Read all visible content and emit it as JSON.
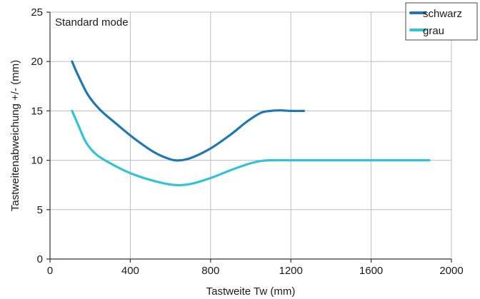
{
  "chart_data": {
    "type": "line",
    "title": "",
    "annotation": "Standard mode",
    "xlabel": "Tastweite Tw (mm)",
    "ylabel": "Tastweitenabweichung +/- (mm)",
    "xlim": [
      0,
      2000
    ],
    "ylim": [
      0,
      25
    ],
    "xticks": [
      0,
      400,
      800,
      1200,
      1600,
      2000
    ],
    "yticks": [
      0,
      5,
      10,
      15,
      20,
      25
    ],
    "grid": true,
    "legend_position": "top-right",
    "series": [
      {
        "name": "schwarz",
        "color": "#1f78b4",
        "x": [
          110,
          140,
          190,
          250,
          330,
          420,
          520,
          600,
          650,
          710,
          800,
          900,
          980,
          1050,
          1100,
          1150,
          1200,
          1265
        ],
        "y": [
          20,
          18.6,
          16.6,
          15.1,
          13.7,
          12.2,
          10.8,
          10.1,
          10.0,
          10.3,
          11.2,
          12.6,
          13.9,
          14.8,
          15.0,
          15.05,
          15.0,
          15.0
        ]
      },
      {
        "name": "grau",
        "color": "#33c3d6",
        "x": [
          110,
          140,
          180,
          230,
          300,
          400,
          520,
          620,
          700,
          800,
          900,
          1000,
          1060,
          1110,
          1200,
          1400,
          1600,
          1800,
          1890
        ],
        "y": [
          15,
          13.6,
          11.8,
          10.6,
          9.7,
          8.7,
          7.9,
          7.5,
          7.6,
          8.2,
          9.0,
          9.7,
          9.95,
          10.0,
          10.0,
          10.0,
          10.0,
          10.0,
          10.0
        ]
      }
    ]
  }
}
